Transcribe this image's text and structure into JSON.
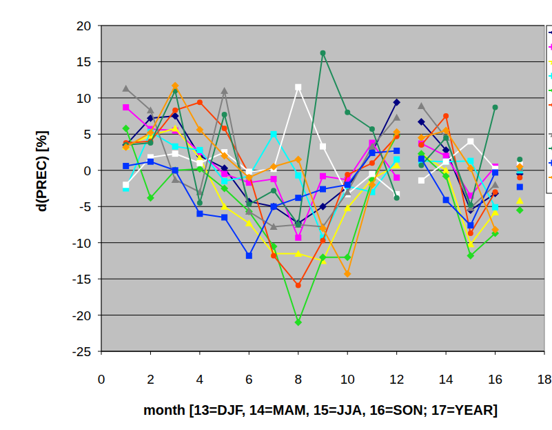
{
  "chart_data": {
    "type": "line",
    "x_label": "month [13=DJF, 14=MAM, 15=JJA, 16=SON; 17=YEAR]",
    "y_label": "d(PREC)  [%]",
    "x": [
      1,
      2,
      3,
      4,
      5,
      6,
      7,
      8,
      9,
      10,
      11,
      12,
      null,
      13,
      14,
      15,
      16,
      null,
      17
    ],
    "xlim": [
      0,
      18
    ],
    "xticks": [
      0,
      2,
      4,
      6,
      8,
      10,
      12,
      14,
      16,
      18
    ],
    "ylim": [
      -25,
      20
    ],
    "yticks": [
      -25,
      -20,
      -15,
      -10,
      -5,
      0,
      5,
      10,
      15,
      20
    ],
    "grid": true,
    "legend": "right",
    "series": [
      {
        "color": "#000080",
        "marker": "diamond",
        "values": [
          3.5,
          7.2,
          7.5,
          2.0,
          0.3,
          -4.3,
          -5.0,
          -7.3,
          -5.0,
          -2.3,
          2.5,
          9.4,
          null,
          6.7,
          2.8,
          -5.5,
          -3.2,
          null,
          -0.5
        ]
      },
      {
        "color": "#FF00FF",
        "marker": "square",
        "values": [
          8.7,
          5.7,
          5.5,
          2.5,
          -0.5,
          -1.7,
          -1.2,
          -9.3,
          -0.8,
          -1.3,
          3.8,
          -1.0,
          null,
          3.7,
          2.0,
          -3.5,
          0.5,
          null,
          0.5
        ]
      },
      {
        "color": "#FFFF00",
        "marker": "triangle",
        "values": [
          3.3,
          4.8,
          5.8,
          1.7,
          -5.0,
          -7.3,
          -11.5,
          -11.5,
          -12.5,
          -5.2,
          -1.2,
          0.7,
          null,
          2.3,
          0.0,
          -10.2,
          -5.8,
          null,
          -4.2
        ]
      },
      {
        "color": "#00FFFF",
        "marker": "square",
        "values": [
          -2.5,
          5.3,
          3.3,
          2.8,
          -1.5,
          -0.8,
          5.0,
          -0.7,
          -9.3,
          -2.2,
          -3.0,
          1.5,
          null,
          1.3,
          1.2,
          1.3,
          -5.1,
          null,
          0.0
        ]
      },
      {
        "color": "#22DD22",
        "marker": "diamond",
        "values": [
          5.8,
          -3.8,
          0.0,
          0.2,
          -2.5,
          -5.7,
          -10.5,
          -21.0,
          -12.0,
          -12.0,
          -1.3,
          4.8,
          null,
          2.3,
          -0.8,
          -11.8,
          -8.7,
          null,
          -5.5
        ]
      },
      {
        "color": "#FF4000",
        "marker": "circle",
        "values": [
          3.8,
          4.0,
          8.3,
          9.4,
          5.8,
          -0.5,
          -11.8,
          -15.9,
          -9.7,
          -0.6,
          1.0,
          4.7,
          null,
          3.5,
          7.5,
          -8.7,
          -3.0,
          null,
          -1.0
        ]
      },
      {
        "color": "#FFFFFF",
        "marker": "square",
        "values": [
          -2.0,
          1.8,
          2.3,
          1.0,
          2.5,
          -0.2,
          0.2,
          11.5,
          3.3,
          -3.3,
          -0.5,
          -3.3,
          null,
          -1.4,
          1.2,
          4.0,
          0.2,
          null,
          0.8
        ]
      },
      {
        "color": "#808080",
        "marker": "triangle",
        "values": [
          11.3,
          8.3,
          -1.3,
          -3.0,
          11.0,
          -5.7,
          -7.8,
          -7.5,
          -7.8,
          -3.0,
          3.3,
          7.3,
          null,
          8.9,
          4.5,
          -5.2,
          -2.0,
          null,
          0.3
        ]
      },
      {
        "color": "#1E8C5A",
        "marker": "circle",
        "values": [
          3.5,
          3.8,
          11.0,
          -4.5,
          7.7,
          -4.7,
          -2.8,
          -7.5,
          16.2,
          8.0,
          5.7,
          -3.8,
          null,
          0.7,
          4.5,
          -4.8,
          8.7,
          null,
          1.5
        ]
      },
      {
        "color": "#0033FF",
        "marker": "square",
        "values": [
          0.6,
          1.2,
          0.0,
          -6.0,
          -6.5,
          -11.8,
          -5.0,
          -3.8,
          -2.6,
          -2.0,
          2.4,
          2.7,
          null,
          1.6,
          -4.1,
          -7.6,
          -0.3,
          null,
          -2.3
        ]
      },
      {
        "color": "#FF9900",
        "marker": "diamond",
        "values": [
          3.2,
          5.2,
          11.7,
          5.6,
          2.0,
          -1.0,
          0.5,
          1.5,
          -8.0,
          -14.3,
          -2.0,
          5.3,
          null,
          4.5,
          5.5,
          0.3,
          -8.2,
          null,
          0.5
        ]
      }
    ]
  }
}
